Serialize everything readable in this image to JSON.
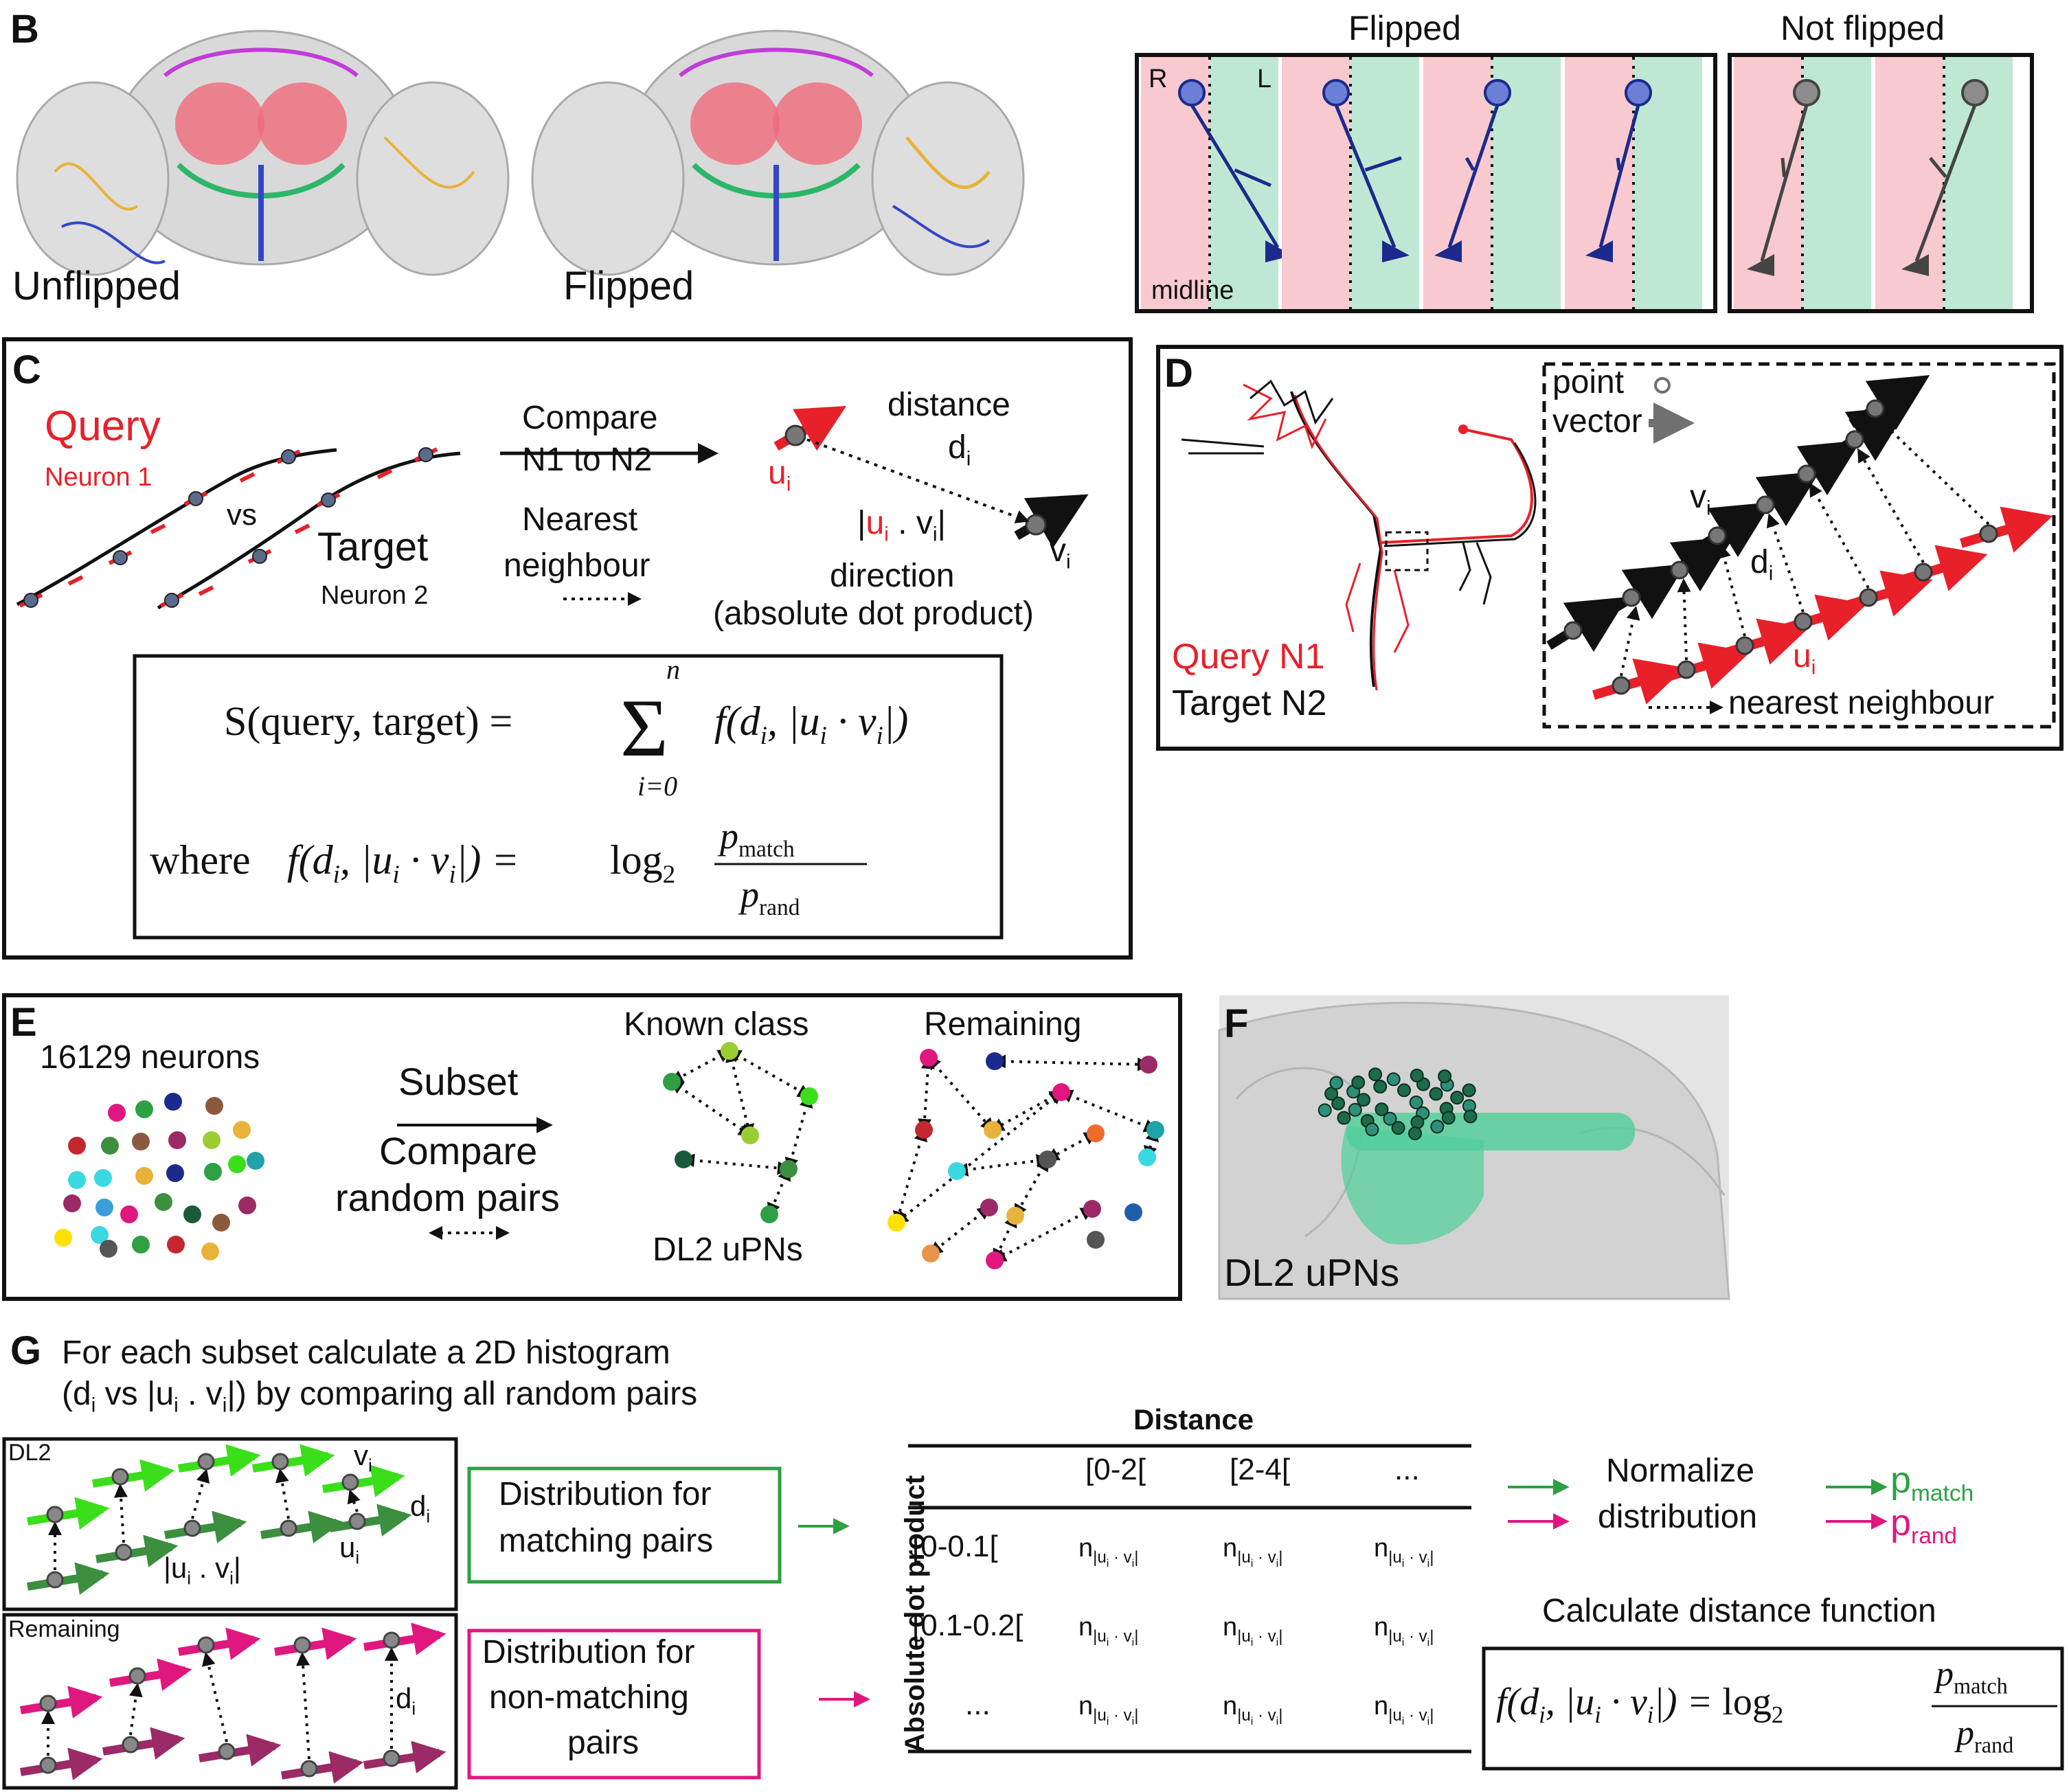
{
  "colors": {
    "red": "#e8202a",
    "navy": "#1b2a8c",
    "green": "#2ea043",
    "bright_green": "#3adf1a",
    "dark_green": "#3b8f3f",
    "magenta": "#e0177f",
    "plum": "#9b2a66",
    "pink_bg": "#f8c9cf",
    "mint_bg": "#bfe8d4",
    "gray": "#707070"
  },
  "panelB": {
    "letter": "B",
    "unflipped": "Unflipped",
    "flipped_label": "Flipped",
    "flipped_header": "Flipped",
    "not_flipped_header": "Not flipped",
    "R": "R",
    "L": "L",
    "midline": "midline"
  },
  "panelC": {
    "letter": "C",
    "query": "Query",
    "neuron1": "Neuron 1",
    "vs": "vs",
    "target": "Target",
    "neuron2": "Neuron 2",
    "compare": "Compare",
    "n1_to_n2": "N1 to N2",
    "nearest": "Nearest",
    "neighbour": "neighbour",
    "distance": "distance",
    "d": "d",
    "i": "i",
    "u": "u",
    "v": "v",
    "dot_open": "|",
    "dot_mid": " . ",
    "dot_close": "|",
    "direction": "direction",
    "absdot": "(absolute dot product)",
    "where": "where",
    "score_lhs": "S(query, target) =",
    "sum_top": "n",
    "sum_bot": "i=0",
    "f_expr": "f(d",
    "log": "log",
    "pmatch": "p",
    "match": "match",
    "prand": "p",
    "rand": "rand"
  },
  "panelD": {
    "letter": "D",
    "query": "Query N1",
    "target": "Target N2",
    "point": "point",
    "vector": "vector",
    "d": "d",
    "i": "i",
    "u": "u",
    "v": "v",
    "nearest": "nearest neighbour"
  },
  "panelE": {
    "letter": "E",
    "count": "16129 neurons",
    "subset": "Subset",
    "compare": "Compare",
    "random": "random pairs",
    "known": "Known class",
    "remaining": "Remaining",
    "dl2": "DL2 uPNs"
  },
  "panelF": {
    "letter": "F",
    "label": "DL2 uPNs"
  },
  "panelG": {
    "letter": "G",
    "line1": "For each subset calculate a 2D histogram",
    "line2_a": "(d",
    "line2_b": " vs |u",
    "line2_c": " . v",
    "line2_d": "|) by comparing all random pairs",
    "dl2": "DL2",
    "remaining": "Remaining",
    "dist_match_1": "Distribution for",
    "dist_match_2": "matching pairs",
    "dist_non_1": "Distribution for",
    "dist_non_2": "non-matching",
    "dist_non_3": "pairs",
    "table_title": "Distance",
    "row_axis": "Absolute dot product",
    "cols": [
      "[0-2[",
      "[2-4[",
      "..."
    ],
    "rows": [
      "[0-0.1[",
      "[0.1-0.2[",
      "..."
    ],
    "cell": "n",
    "normalize_1": "Normalize",
    "normalize_2": "distribution",
    "p": "p",
    "match": "match",
    "rand": "rand",
    "calc": "Calculate distance function",
    "d": "d",
    "i": "i",
    "u": "u",
    "v": "v"
  }
}
